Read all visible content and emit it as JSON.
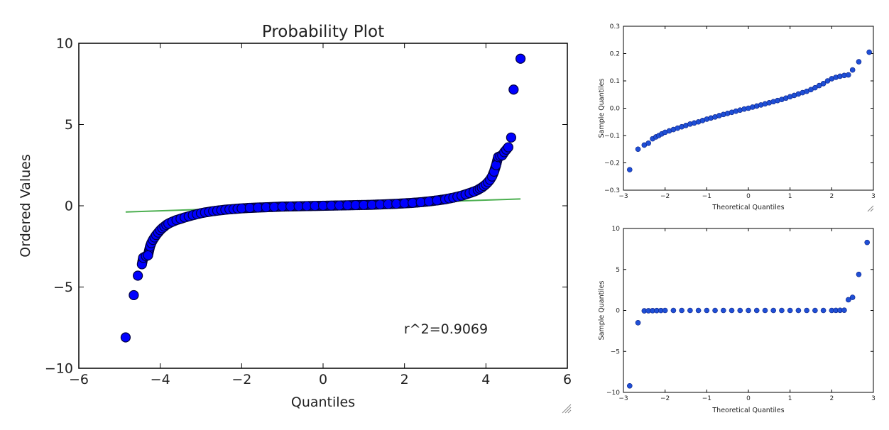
{
  "chart_data": [
    {
      "type": "scatter",
      "title": "Probability Plot",
      "xlabel": "Quantiles",
      "ylabel": "Ordered Values",
      "xlim": [
        -6,
        6
      ],
      "ylim": [
        -10,
        10
      ],
      "xticks": [
        -6,
        -4,
        -2,
        0,
        2,
        4,
        6
      ],
      "yticks": [
        -10,
        -5,
        0,
        5,
        10
      ],
      "xtick_labels": [
        "−6",
        "−4",
        "−2",
        "0",
        "2",
        "4",
        "6"
      ],
      "ytick_labels": [
        "−10",
        "−5",
        "0",
        "5",
        "10"
      ],
      "grid": false,
      "annotation": "r^2=0.9069",
      "marker_color": "#0000ff",
      "marker_edge_color": "#000040",
      "fit_line": {
        "x": [
          -4.85,
          4.85
        ],
        "y": [
          -0.38,
          0.42
        ],
        "color": "#4caf50"
      },
      "series": [
        {
          "x": [
            -4.85,
            -4.65,
            -4.55,
            -4.45,
            -4.42,
            -4.35,
            -4.3,
            -4.25,
            -4.22,
            -4.18,
            -4.14,
            -4.1,
            -4.05,
            -4.0,
            -3.95,
            -3.9,
            -3.85,
            -3.8,
            -3.7,
            -3.6,
            -3.5,
            -3.4,
            -3.3,
            -3.2,
            -3.1,
            -3.0,
            -2.9,
            -2.8,
            -2.7,
            -2.6,
            -2.5,
            -2.4,
            -2.3,
            -2.2,
            -2.1,
            -2.0,
            -1.8,
            -1.6,
            -1.4,
            -1.2,
            -1.0,
            -0.8,
            -0.6,
            -0.4,
            -0.2,
            0.0,
            0.2,
            0.4,
            0.6,
            0.8,
            1.0,
            1.2,
            1.4,
            1.6,
            1.8,
            2.0,
            2.2,
            2.4,
            2.6,
            2.8,
            3.0,
            3.1,
            3.2,
            3.3,
            3.4,
            3.5,
            3.6,
            3.7,
            3.8,
            3.85,
            3.9,
            3.95,
            4.0,
            4.05,
            4.1,
            4.15,
            4.2,
            4.25,
            4.3,
            4.35,
            4.4,
            4.45,
            4.5,
            4.55,
            4.62,
            4.68,
            4.85
          ],
          "y": [
            -8.1,
            -5.5,
            -4.3,
            -3.6,
            -3.2,
            -3.1,
            -3.05,
            -2.5,
            -2.3,
            -2.1,
            -1.95,
            -1.8,
            -1.65,
            -1.5,
            -1.38,
            -1.28,
            -1.18,
            -1.1,
            -0.98,
            -0.88,
            -0.8,
            -0.72,
            -0.65,
            -0.58,
            -0.52,
            -0.46,
            -0.41,
            -0.37,
            -0.33,
            -0.3,
            -0.27,
            -0.24,
            -0.22,
            -0.2,
            -0.18,
            -0.16,
            -0.13,
            -0.11,
            -0.09,
            -0.07,
            -0.05,
            -0.04,
            -0.03,
            -0.02,
            -0.01,
            0.0,
            0.01,
            0.02,
            0.03,
            0.04,
            0.05,
            0.06,
            0.08,
            0.1,
            0.12,
            0.15,
            0.18,
            0.22,
            0.27,
            0.33,
            0.4,
            0.45,
            0.5,
            0.56,
            0.62,
            0.7,
            0.78,
            0.87,
            0.97,
            1.05,
            1.12,
            1.22,
            1.32,
            1.45,
            1.6,
            1.8,
            2.1,
            2.5,
            3.0,
            3.05,
            3.1,
            3.3,
            3.45,
            3.6,
            4.2,
            7.15,
            9.05
          ]
        }
      ]
    },
    {
      "type": "scatter",
      "xlabel": "Theoretical Quantiles",
      "ylabel": "Sample Quantiles",
      "xlim": [
        -3,
        3
      ],
      "ylim": [
        -0.3,
        0.3
      ],
      "xticks": [
        -3,
        -2,
        -1,
        0,
        1,
        2,
        3
      ],
      "yticks": [
        -0.3,
        -0.2,
        -0.1,
        0.0,
        0.1,
        0.2,
        0.3
      ],
      "xtick_labels": [
        "−3",
        "−2",
        "−1",
        "0",
        "1",
        "2",
        "3"
      ],
      "ytick_labels": [
        "−0.3",
        "−0.2",
        "−0.1",
        "0.0",
        "0.1",
        "0.2",
        "0.3"
      ],
      "grid": false,
      "marker_color": "#1f4fd6",
      "series": [
        {
          "x": [
            -2.85,
            -2.65,
            -2.5,
            -2.4,
            -2.3,
            -2.22,
            -2.15,
            -2.08,
            -2.0,
            -1.9,
            -1.8,
            -1.7,
            -1.6,
            -1.5,
            -1.4,
            -1.3,
            -1.2,
            -1.1,
            -1.0,
            -0.9,
            -0.8,
            -0.7,
            -0.6,
            -0.5,
            -0.4,
            -0.3,
            -0.2,
            -0.1,
            0.0,
            0.1,
            0.2,
            0.3,
            0.4,
            0.5,
            0.6,
            0.7,
            0.8,
            0.9,
            1.0,
            1.1,
            1.2,
            1.3,
            1.4,
            1.5,
            1.6,
            1.7,
            1.8,
            1.9,
            2.0,
            2.1,
            2.2,
            2.3,
            2.4,
            2.5,
            2.65,
            2.9
          ],
          "y": [
            -0.225,
            -0.15,
            -0.135,
            -0.128,
            -0.112,
            -0.105,
            -0.1,
            -0.094,
            -0.088,
            -0.083,
            -0.078,
            -0.073,
            -0.068,
            -0.063,
            -0.058,
            -0.054,
            -0.05,
            -0.045,
            -0.04,
            -0.036,
            -0.032,
            -0.027,
            -0.023,
            -0.019,
            -0.015,
            -0.011,
            -0.007,
            -0.003,
            0.0,
            0.004,
            0.008,
            0.012,
            0.016,
            0.02,
            0.024,
            0.028,
            0.032,
            0.037,
            0.042,
            0.047,
            0.052,
            0.057,
            0.062,
            0.068,
            0.075,
            0.083,
            0.09,
            0.1,
            0.108,
            0.113,
            0.117,
            0.12,
            0.122,
            0.14,
            0.17,
            0.205
          ]
        }
      ]
    },
    {
      "type": "scatter",
      "xlabel": "Theoretical Quantiles",
      "ylabel": "Sample Quantiles",
      "xlim": [
        -3,
        3
      ],
      "ylim": [
        -10,
        10
      ],
      "xticks": [
        -3,
        -2,
        -1,
        0,
        1,
        2,
        3
      ],
      "yticks": [
        -10,
        -5,
        0,
        5,
        10
      ],
      "xtick_labels": [
        "−3",
        "−2",
        "−1",
        "0",
        "1",
        "2",
        "3"
      ],
      "ytick_labels": [
        "−10",
        "−5",
        "0",
        "5",
        "10"
      ],
      "grid": false,
      "marker_color": "#1f4fd6",
      "series": [
        {
          "x": [
            -2.85,
            -2.65,
            -2.5,
            -2.4,
            -2.3,
            -2.2,
            -2.1,
            -2.0,
            -1.8,
            -1.6,
            -1.4,
            -1.2,
            -1.0,
            -0.8,
            -0.6,
            -0.4,
            -0.2,
            0.0,
            0.2,
            0.4,
            0.6,
            0.8,
            1.0,
            1.2,
            1.4,
            1.6,
            1.8,
            2.0,
            2.1,
            2.2,
            2.3,
            2.4,
            2.5,
            2.65,
            2.85
          ],
          "y": [
            -9.2,
            -1.5,
            -0.05,
            -0.04,
            -0.03,
            -0.02,
            -0.01,
            0.0,
            0.0,
            0.0,
            0.0,
            0.0,
            0.0,
            0.0,
            0.0,
            0.0,
            0.0,
            0.0,
            0.0,
            0.0,
            0.0,
            0.0,
            0.0,
            0.0,
            0.0,
            0.0,
            0.0,
            0.0,
            0.01,
            0.02,
            0.03,
            1.3,
            1.6,
            4.4,
            8.3
          ]
        }
      ]
    }
  ]
}
